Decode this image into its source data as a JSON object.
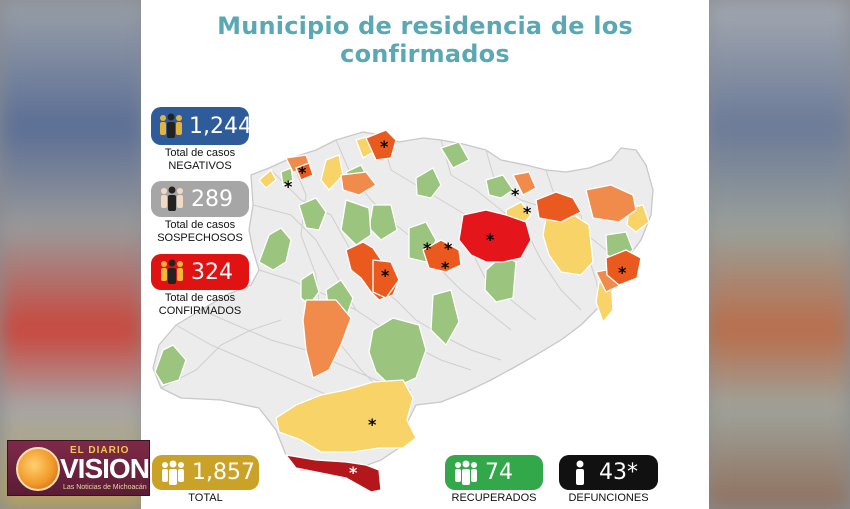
{
  "title": "Municipio de residencia de los confirmados",
  "stats": {
    "negativos": {
      "value": "1,244",
      "label_line1": "Total de casos",
      "label_line2": "NEGATIVOS",
      "color": "#2e5c9a",
      "icon": "people-icon"
    },
    "sospechosos": {
      "value": "289",
      "label_line1": "Total de casos",
      "label_line2": "SOSPECHOSOS",
      "color": "#a6a6a6",
      "icon": "people-icon"
    },
    "confirmados": {
      "value": "324",
      "label_line1": "Total de casos",
      "label_line2": "CONFIRMADOS",
      "color": "#e01212",
      "icon": "people-icon"
    },
    "total": {
      "value": "1,857",
      "label": "TOTAL",
      "color": "#c9a227",
      "icon": "people-icon"
    },
    "recuperados": {
      "value": "74",
      "label": "RECUPERADOS",
      "color": "#33a84b",
      "icon": "people-icon"
    },
    "defunciones": {
      "value": "43*",
      "label": "DEFUNCIONES",
      "color": "#111111",
      "icon": "person-icon"
    }
  },
  "map": {
    "legend_colors": {
      "none": "#ececec",
      "green": "#9bc47f",
      "yellow": "#f7d368",
      "light_orange": "#f08b4c",
      "orange": "#ea5a1f",
      "red": "#e4161b",
      "dark_red": "#b4171b"
    },
    "marker": "*"
  },
  "logo": {
    "small": "EL DIARIO",
    "name": "VISION",
    "tagline": "Las Noticias de Michoacán"
  }
}
